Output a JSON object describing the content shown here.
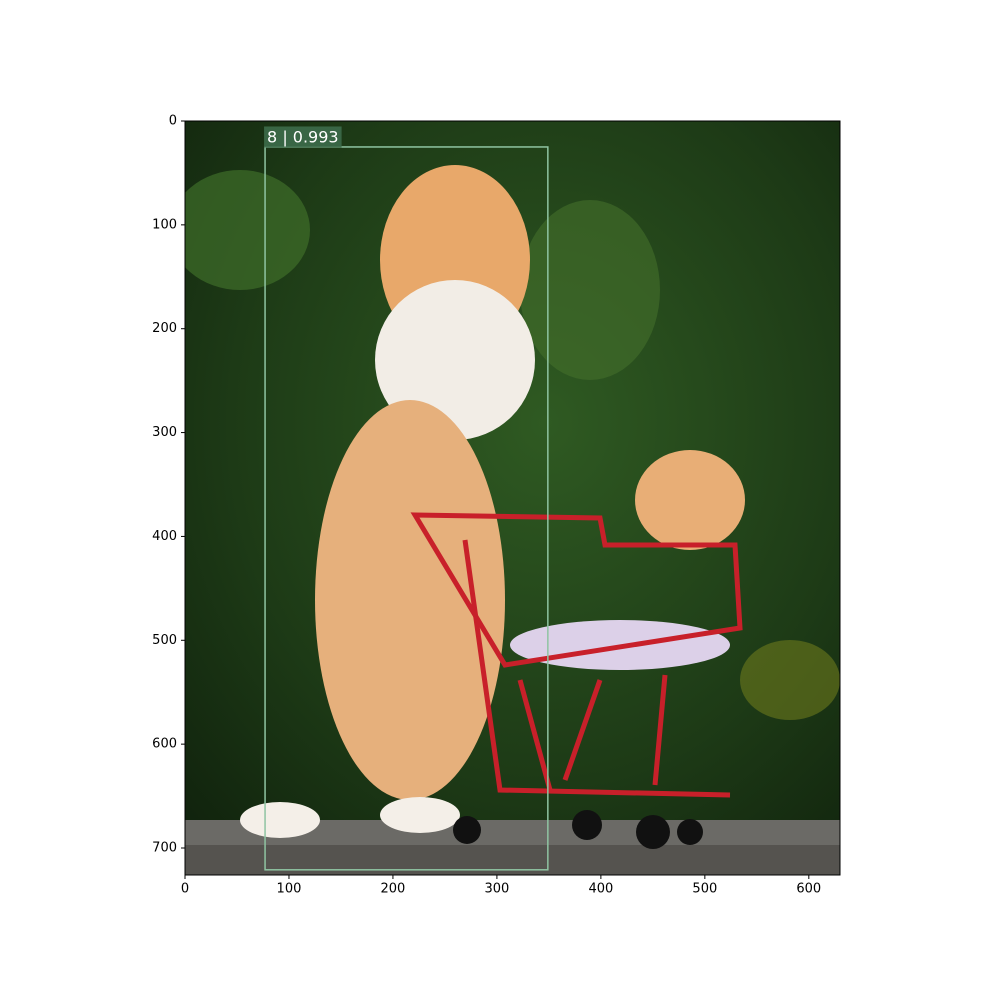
{
  "chart_data": {
    "type": "image",
    "xlim": [
      0,
      630
    ],
    "ylim": [
      726,
      0
    ],
    "xticks": [
      0,
      100,
      200,
      300,
      400,
      500,
      600
    ],
    "yticks": [
      0,
      100,
      200,
      300,
      400,
      500,
      600,
      700
    ],
    "boxes": [
      {
        "label": "8 | 0.993",
        "x": [
          77,
          349
        ],
        "y": [
          25,
          721
        ],
        "color": "#8fc4a2"
      }
    ]
  }
}
